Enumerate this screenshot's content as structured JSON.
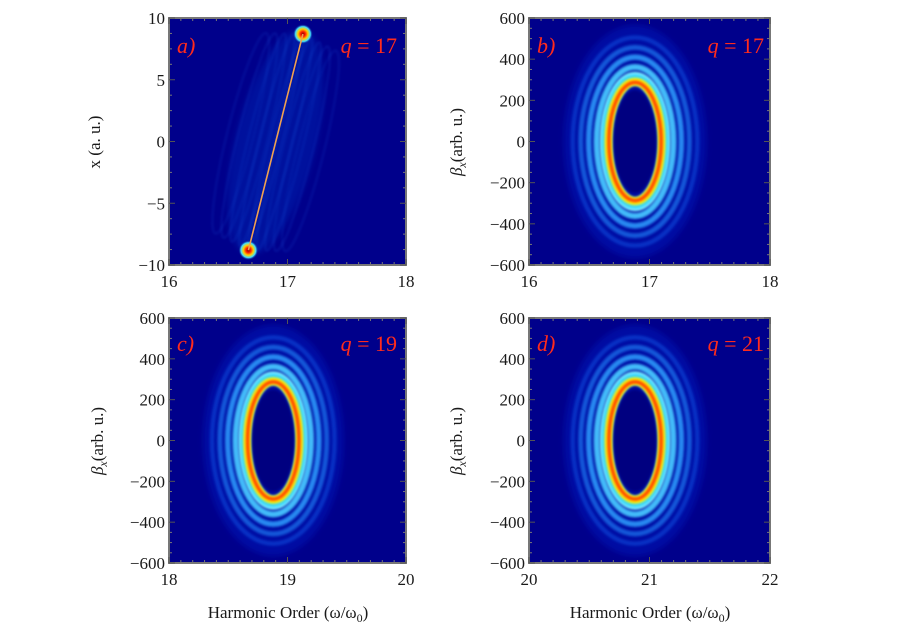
{
  "chart_data": [
    {
      "type": "heatmap",
      "panel": "a)",
      "annotation": {
        "var": "q",
        "eq": " = ",
        "value": "17"
      },
      "xlabel": "",
      "ylabel": "x (a. u.)",
      "xlim": [
        16,
        18
      ],
      "ylim": [
        -10,
        10
      ],
      "xticks": [
        "16",
        "17",
        "18"
      ],
      "yticks": [
        {
          "v": -10,
          "t": "−10"
        },
        {
          "v": -5,
          "t": "−5"
        },
        {
          "v": 0,
          "t": "0"
        },
        {
          "v": 5,
          "t": "5"
        },
        {
          "v": 10,
          "t": "10"
        }
      ],
      "pattern": "stripe",
      "hotspots": [
        {
          "x": 17.13,
          "y": 8.7
        },
        {
          "x": 16.67,
          "y": -8.8
        }
      ],
      "line": {
        "from": [
          17.13,
          8.7
        ],
        "to": [
          16.67,
          -8.8
        ]
      }
    },
    {
      "type": "heatmap",
      "panel": "b)",
      "annotation": {
        "var": "q",
        "eq": " = ",
        "value": "17"
      },
      "xlabel": "",
      "ylabel_sym": "β",
      "ylabel_sub": "x",
      "ylabel_rest": "(arb. u.)",
      "xlim": [
        16,
        18
      ],
      "ylim": [
        -600,
        600
      ],
      "xticks": [
        "16",
        "17",
        "18"
      ],
      "yticks": [
        {
          "v": -600,
          "t": "−600"
        },
        {
          "v": -400,
          "t": "−400"
        },
        {
          "v": -200,
          "t": "−200"
        },
        {
          "v": 0,
          "t": "0"
        },
        {
          "v": 200,
          "t": "200"
        },
        {
          "v": 400,
          "t": "400"
        },
        {
          "v": 600,
          "t": "600"
        }
      ],
      "pattern": "rings",
      "center": [
        16.88,
        0
      ],
      "ring_radius": {
        "x": 0.22,
        "y": 290
      }
    },
    {
      "type": "heatmap",
      "panel": "c)",
      "annotation": {
        "var": "q",
        "eq": " = ",
        "value": "19"
      },
      "xlabel": "Harmonic Order (ω/ω",
      "xlabel_sub": "0",
      "xlabel_end": ")",
      "ylabel_sym": "β",
      "ylabel_sub": "x",
      "ylabel_rest": "(arb. u.)",
      "xlim": [
        18,
        20
      ],
      "ylim": [
        -600,
        600
      ],
      "xticks": [
        "18",
        "19",
        "20"
      ],
      "yticks": [
        {
          "v": -600,
          "t": "−600"
        },
        {
          "v": -400,
          "t": "−400"
        },
        {
          "v": -200,
          "t": "−200"
        },
        {
          "v": 0,
          "t": "0"
        },
        {
          "v": 200,
          "t": "200"
        },
        {
          "v": 400,
          "t": "400"
        },
        {
          "v": 600,
          "t": "600"
        }
      ],
      "pattern": "rings",
      "center": [
        18.88,
        0
      ],
      "ring_radius": {
        "x": 0.22,
        "y": 290
      }
    },
    {
      "type": "heatmap",
      "panel": "d)",
      "annotation": {
        "var": "q",
        "eq": " = ",
        "value": "21"
      },
      "xlabel": "Harmonic Order (ω/ω",
      "xlabel_sub": "0",
      "xlabel_end": ")",
      "ylabel_sym": "β",
      "ylabel_sub": "x",
      "ylabel_rest": "(arb. u.)",
      "xlim": [
        20,
        22
      ],
      "ylim": [
        -600,
        600
      ],
      "xticks": [
        "20",
        "21",
        "22"
      ],
      "yticks": [
        {
          "v": -600,
          "t": "−600"
        },
        {
          "v": -400,
          "t": "−400"
        },
        {
          "v": -200,
          "t": "−200"
        },
        {
          "v": 0,
          "t": "0"
        },
        {
          "v": 200,
          "t": "200"
        },
        {
          "v": 400,
          "t": "400"
        },
        {
          "v": 600,
          "t": "600"
        }
      ],
      "pattern": "rings",
      "center": [
        20.88,
        0
      ],
      "ring_radius": {
        "x": 0.22,
        "y": 290
      }
    }
  ],
  "colors": {
    "background": "#00008b",
    "line": "#f0a050",
    "annotation": "#ff2b1c"
  }
}
